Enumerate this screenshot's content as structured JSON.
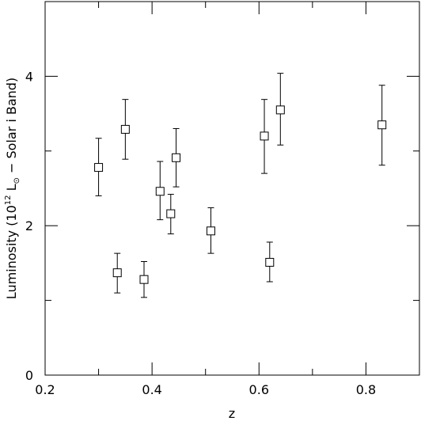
{
  "chart_data": {
    "type": "scatter",
    "xlabel": "z",
    "ylabel": {
      "prefix": "Luminosity (10",
      "exponent": "12",
      "mid": " L",
      "subscript": "⊙",
      "suffix": " − Solar i Band)"
    },
    "xlim": [
      0.2,
      0.9
    ],
    "ylim": [
      0,
      5
    ],
    "x_ticks": [
      0.2,
      0.4,
      0.6,
      0.8
    ],
    "x_tick_labels": [
      "0.2",
      "0.4",
      "0.6",
      "0.8"
    ],
    "y_ticks": [
      0,
      2,
      4
    ],
    "y_tick_labels": [
      "0",
      "2",
      "4"
    ],
    "x_minor_ticks": [
      0.3,
      0.5,
      0.7
    ],
    "y_minor_ticks": [
      1,
      3
    ],
    "grid": false,
    "marker": "open-square",
    "error_bars": true,
    "points": [
      {
        "x": 0.3,
        "y": 2.78,
        "ylow": 2.4,
        "yhigh": 3.17
      },
      {
        "x": 0.335,
        "y": 1.37,
        "ylow": 1.1,
        "yhigh": 1.63
      },
      {
        "x": 0.35,
        "y": 3.29,
        "ylow": 2.89,
        "yhigh": 3.69
      },
      {
        "x": 0.385,
        "y": 1.28,
        "ylow": 1.04,
        "yhigh": 1.52
      },
      {
        "x": 0.415,
        "y": 2.46,
        "ylow": 2.08,
        "yhigh": 2.86
      },
      {
        "x": 0.435,
        "y": 2.16,
        "ylow": 1.89,
        "yhigh": 2.42
      },
      {
        "x": 0.445,
        "y": 2.91,
        "ylow": 2.52,
        "yhigh": 3.3
      },
      {
        "x": 0.51,
        "y": 1.93,
        "ylow": 1.63,
        "yhigh": 2.24
      },
      {
        "x": 0.61,
        "y": 3.2,
        "ylow": 2.7,
        "yhigh": 3.69
      },
      {
        "x": 0.62,
        "y": 1.51,
        "ylow": 1.25,
        "yhigh": 1.78
      },
      {
        "x": 0.64,
        "y": 3.55,
        "ylow": 3.08,
        "yhigh": 4.04
      },
      {
        "x": 0.83,
        "y": 3.35,
        "ylow": 2.81,
        "yhigh": 3.88
      }
    ]
  }
}
